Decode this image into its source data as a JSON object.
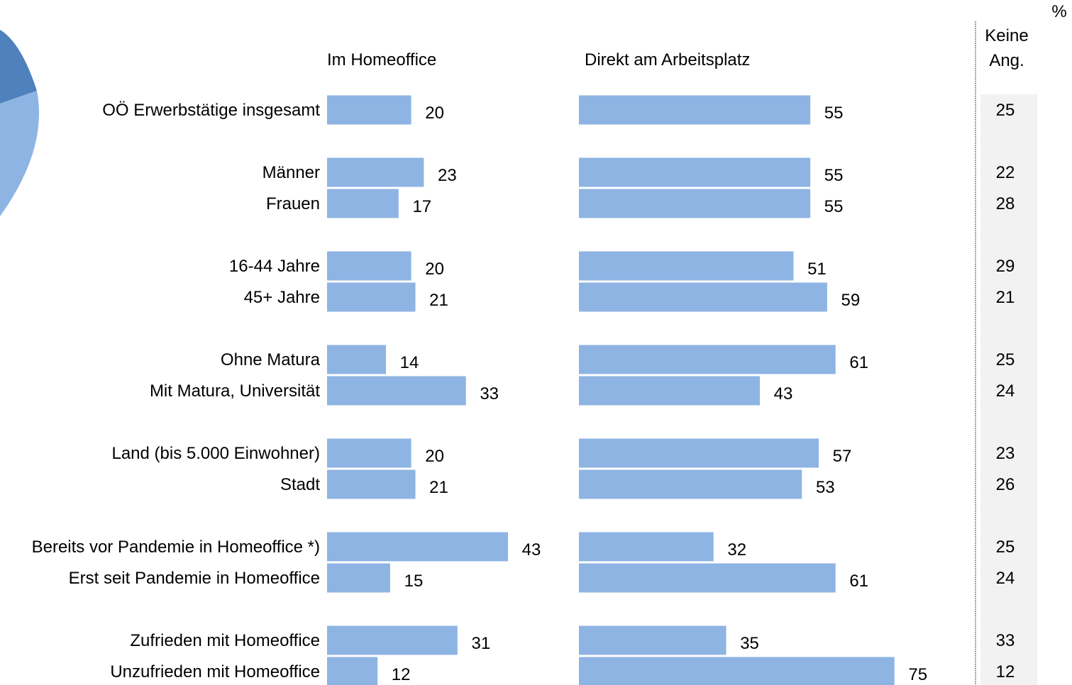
{
  "chart_data": {
    "type": "bar",
    "orientation": "horizontal",
    "unit": "%",
    "series": [
      {
        "name": "Im Homeoffice",
        "values": [
          20,
          23,
          17,
          20,
          21,
          14,
          33,
          20,
          21,
          43,
          15,
          31,
          12
        ]
      },
      {
        "name": "Direkt am Arbeitsplatz",
        "values": [
          55,
          55,
          55,
          51,
          59,
          61,
          43,
          57,
          53,
          32,
          61,
          35,
          75
        ]
      }
    ],
    "side_column": {
      "header_lines": [
        "Keine",
        "Ang."
      ],
      "values": [
        "25",
        "22",
        "28",
        "29",
        "21",
        "25",
        "24",
        "23",
        "26",
        "25",
        "24",
        "33",
        "12"
      ]
    },
    "categories": [
      "OÖ Erwerbstätige insgesamt",
      "Männer",
      "Frauen",
      "16-44 Jahre",
      "45+ Jahre",
      "Ohne Matura",
      "Mit Matura, Universität",
      "Land (bis 5.000 Einwohner)",
      "Stadt",
      "Bereits vor Pandemie in Homeoffice *)",
      "Erst seit Pandemie in Homeoffice",
      "Zufrieden mit Homeoffice",
      "Unzufrieden mit Homeoffice"
    ],
    "groups": [
      [
        0
      ],
      [
        1,
        2
      ],
      [
        3,
        4
      ],
      [
        5,
        6
      ],
      [
        7,
        8
      ],
      [
        9,
        10
      ],
      [
        11,
        12
      ]
    ],
    "colors": {
      "bar": "#8eb4e3",
      "side_bg": "#f2f2f2",
      "pie_dark": "#4f81bd",
      "pie_light": "#8eb4e3"
    }
  }
}
